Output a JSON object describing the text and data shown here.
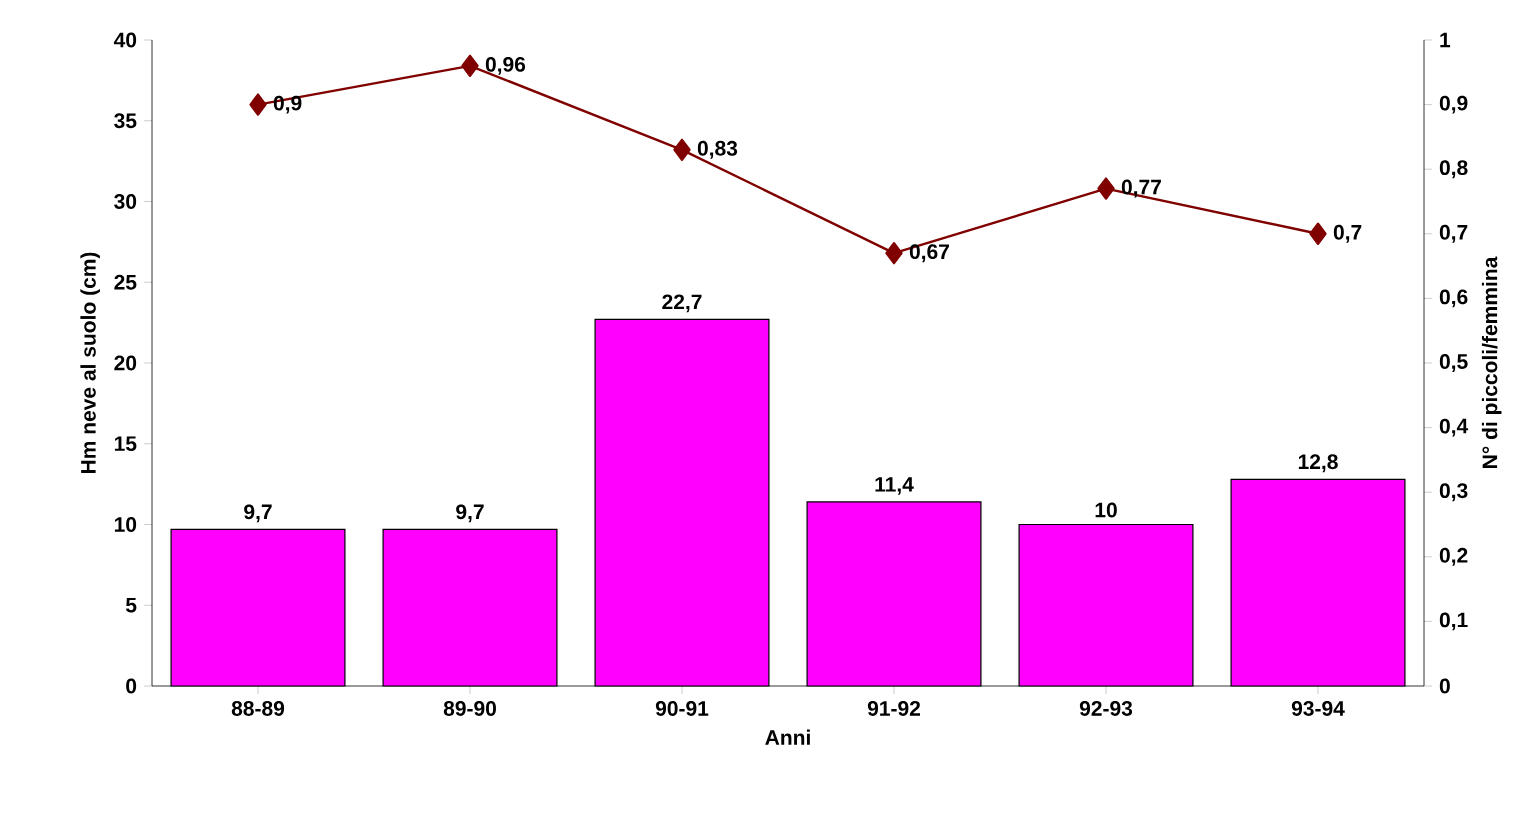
{
  "chart_data": {
    "type": "bar",
    "categories": [
      "88-89",
      "89-90",
      "90-91",
      "91-92",
      "92-93",
      "93-94"
    ],
    "series": [
      {
        "color": "#ff00ff",
        "values": [
          9.7,
          9.7,
          22.7,
          11.4,
          10,
          12.8
        ],
        "value_labels": [
          "9,7",
          "9,7",
          "22,7",
          "11,4",
          "10",
          "12,8"
        ]
      },
      {
        "type": "line",
        "axis": "y2",
        "color": "#800000",
        "values": [
          0.9,
          0.96,
          0.83,
          0.67,
          0.77,
          0.7
        ],
        "value_labels": [
          "0,9",
          "0,96",
          "0,83",
          "0,67",
          "0,77",
          "0,7"
        ]
      }
    ],
    "marker": "diamond",
    "xlabel": "Anni",
    "ylabel": "Hm neve al suolo (cm)",
    "y2label": "N° di piccoli/femmina",
    "ylim": [
      0,
      40
    ],
    "yticks": [
      0,
      5,
      10,
      15,
      20,
      25,
      30,
      35,
      40
    ],
    "y2lim": [
      0,
      1
    ],
    "y2ticks": [
      0,
      {
        "value": 0.1,
        "label": "0,1"
      },
      {
        "value": 0.2,
        "label": "0,2"
      },
      {
        "value": 0.3,
        "label": "0,3"
      },
      {
        "value": 0.4,
        "label": "0,4"
      },
      {
        "value": 0.5,
        "label": "0,5"
      },
      {
        "value": 0.6,
        "label": "0,6"
      },
      {
        "value": 0.7,
        "label": "0,7"
      },
      {
        "value": 0.8,
        "label": "0,8"
      },
      {
        "value": 0.9,
        "label": "0,9"
      },
      1
    ]
  }
}
